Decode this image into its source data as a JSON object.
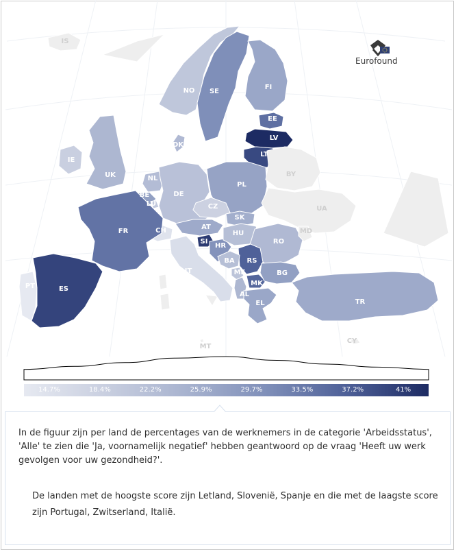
{
  "brand": {
    "name": "Eurofound"
  },
  "colors": {
    "ocean": "#ffffff",
    "no_data": "#eeeeee",
    "border": "#ffffff",
    "label_light": "#ffffff",
    "label_nodata": "#cfcfcf",
    "ramp": [
      "#e6e9f1",
      "#c9cfe0",
      "#a8b3cf",
      "#7f8fb9",
      "#4d5f97",
      "#1d2b63"
    ]
  },
  "countries": [
    {
      "code": "IS",
      "value": null
    },
    {
      "code": "NO",
      "value": 21.5
    },
    {
      "code": "SE",
      "value": 30.5
    },
    {
      "code": "FI",
      "value": 27.0
    },
    {
      "code": "EE",
      "value": 34.0
    },
    {
      "code": "LV",
      "value": 41.0
    },
    {
      "code": "LT",
      "value": 38.0
    },
    {
      "code": "DK",
      "value": 24.0
    },
    {
      "code": "IE",
      "value": 20.0
    },
    {
      "code": "UK",
      "value": 24.5
    },
    {
      "code": "NL",
      "value": 23.5
    },
    {
      "code": "BE",
      "value": 28.0
    },
    {
      "code": "LU",
      "value": 21.0
    },
    {
      "code": "DE",
      "value": 22.5
    },
    {
      "code": "PL",
      "value": 27.5
    },
    {
      "code": "CZ",
      "value": 19.5
    },
    {
      "code": "SK",
      "value": 26.0
    },
    {
      "code": "AT",
      "value": 26.5
    },
    {
      "code": "CH",
      "value": 16.0
    },
    {
      "code": "FR",
      "value": 33.5
    },
    {
      "code": "IT",
      "value": 17.0
    },
    {
      "code": "SI",
      "value": 39.5
    },
    {
      "code": "HR",
      "value": 30.0
    },
    {
      "code": "HU",
      "value": 23.0
    },
    {
      "code": "RO",
      "value": 24.0
    },
    {
      "code": "RS",
      "value": 35.5
    },
    {
      "code": "BA",
      "value": 23.0
    },
    {
      "code": "ME",
      "value": 22.0
    },
    {
      "code": "AL",
      "value": 24.5
    },
    {
      "code": "MK",
      "value": 35.0
    },
    {
      "code": "BG",
      "value": 28.0
    },
    {
      "code": "EL",
      "value": 27.0
    },
    {
      "code": "TR",
      "value": 26.5
    },
    {
      "code": "ES",
      "value": 38.5
    },
    {
      "code": "PT",
      "value": 14.7
    },
    {
      "code": "MT",
      "value": null
    },
    {
      "code": "CY",
      "value": null
    },
    {
      "code": "BY",
      "value": null
    },
    {
      "code": "UA",
      "value": null
    },
    {
      "code": "MD",
      "value": null
    }
  ],
  "legend": {
    "ticks": [
      "14.7%",
      "18.4%",
      "22.2%",
      "25.9%",
      "29.7%",
      "33.5%",
      "37.2%",
      "41%"
    ],
    "histogram": [
      0.15,
      0.35,
      0.6,
      0.9,
      1.0,
      0.75,
      0.5,
      0.3,
      0.15
    ]
  },
  "info": {
    "paragraph1": "In de figuur zijn per land de percentages van de werknemers in de categorie 'Arbeidsstatus', 'Alle' te zien die 'Ja, voornamelijk negatief' hebben geantwoord op de vraag 'Heeft uw werk gevolgen voor uw gezondheid?'.",
    "paragraph2": "De landen met de hoogste score zijn Letland, Slovenië, Spanje en die met de laagste score zijn Portugal, Zwitserland, Italië."
  }
}
